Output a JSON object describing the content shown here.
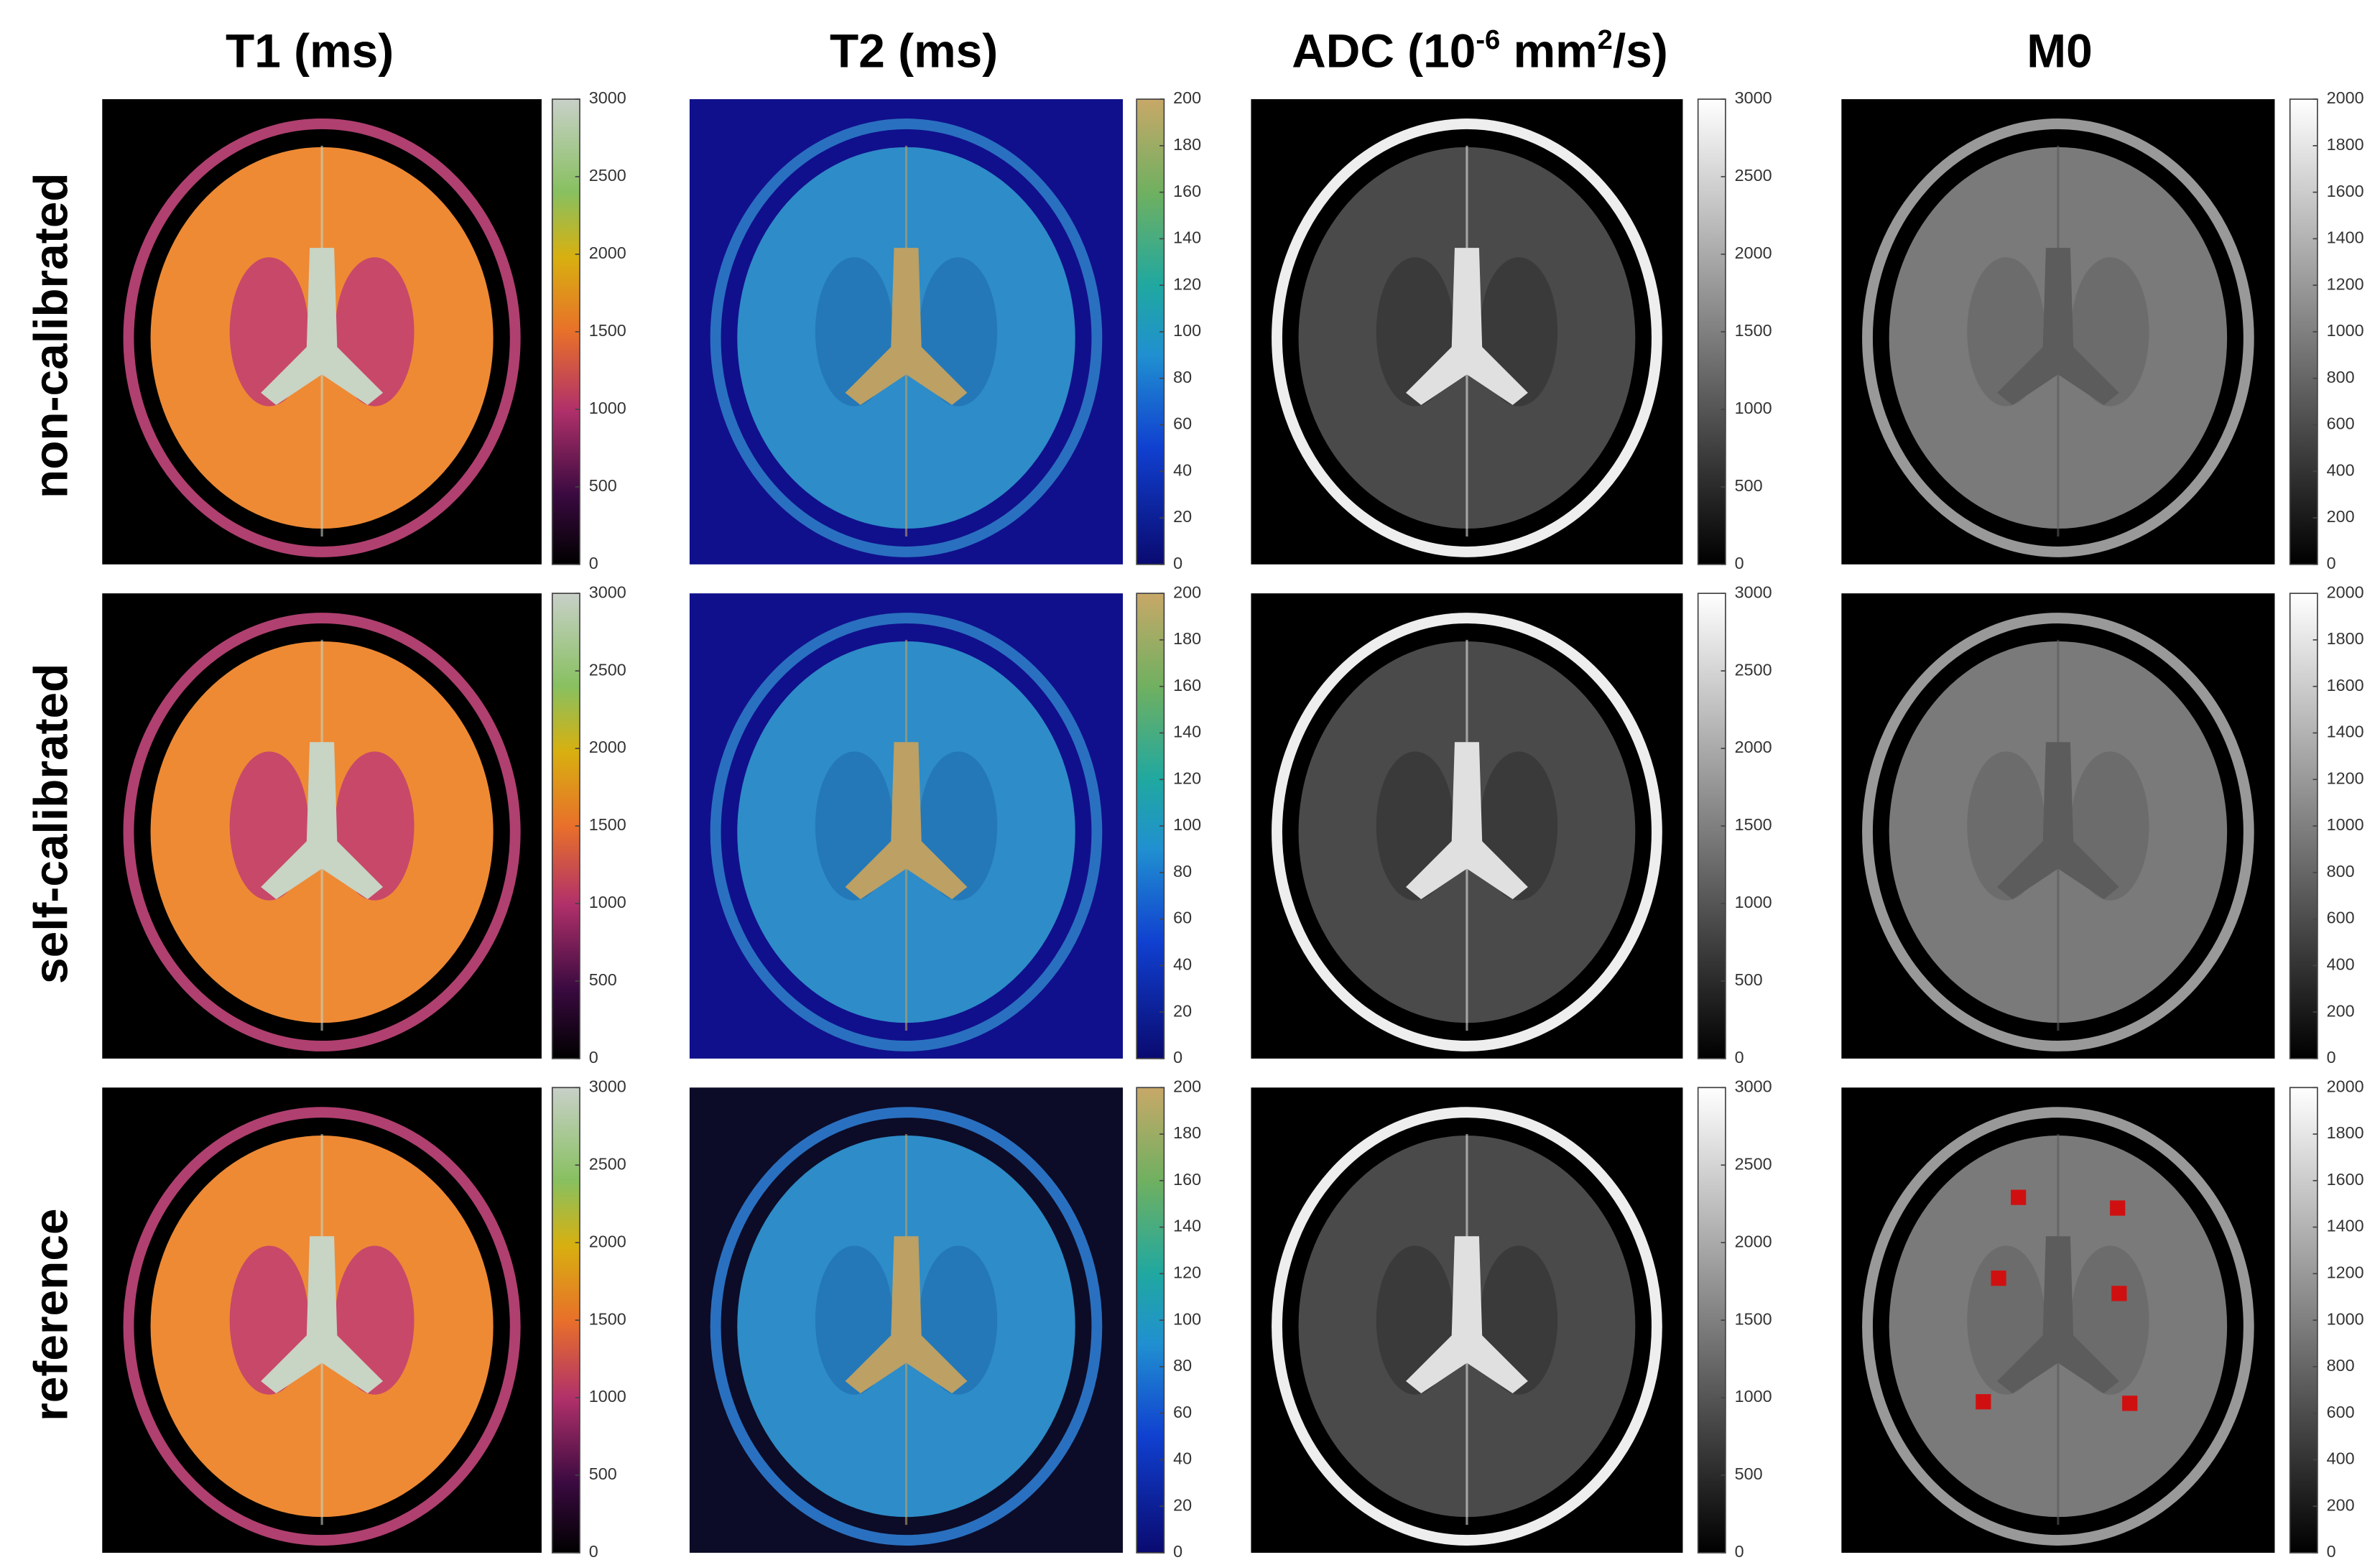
{
  "columns": [
    {
      "title": [
        "T1 (ms)"
      ],
      "clim": [
        0,
        3000
      ],
      "ticks": [
        0,
        500,
        1000,
        1500,
        2000,
        2500,
        3000
      ]
    },
    {
      "title": [
        "T2 (ms)"
      ],
      "clim": [
        0,
        200
      ],
      "ticks": [
        0,
        20,
        40,
        60,
        80,
        100,
        120,
        140,
        160,
        180,
        200
      ]
    },
    {
      "title": [
        "ADC (10",
        "-6",
        " mm",
        "2",
        "/s)"
      ],
      "clim": [
        0,
        3000
      ],
      "ticks": [
        0,
        500,
        1000,
        1500,
        2000,
        2500,
        3000
      ]
    },
    {
      "title": [
        "M0"
      ],
      "clim": [
        0,
        2000
      ],
      "ticks": [
        0,
        200,
        400,
        600,
        800,
        1000,
        1200,
        1400,
        1600,
        1800,
        2000
      ]
    }
  ],
  "rows": [
    "non-calibrated",
    "self-calibrated",
    "reference"
  ]
}
